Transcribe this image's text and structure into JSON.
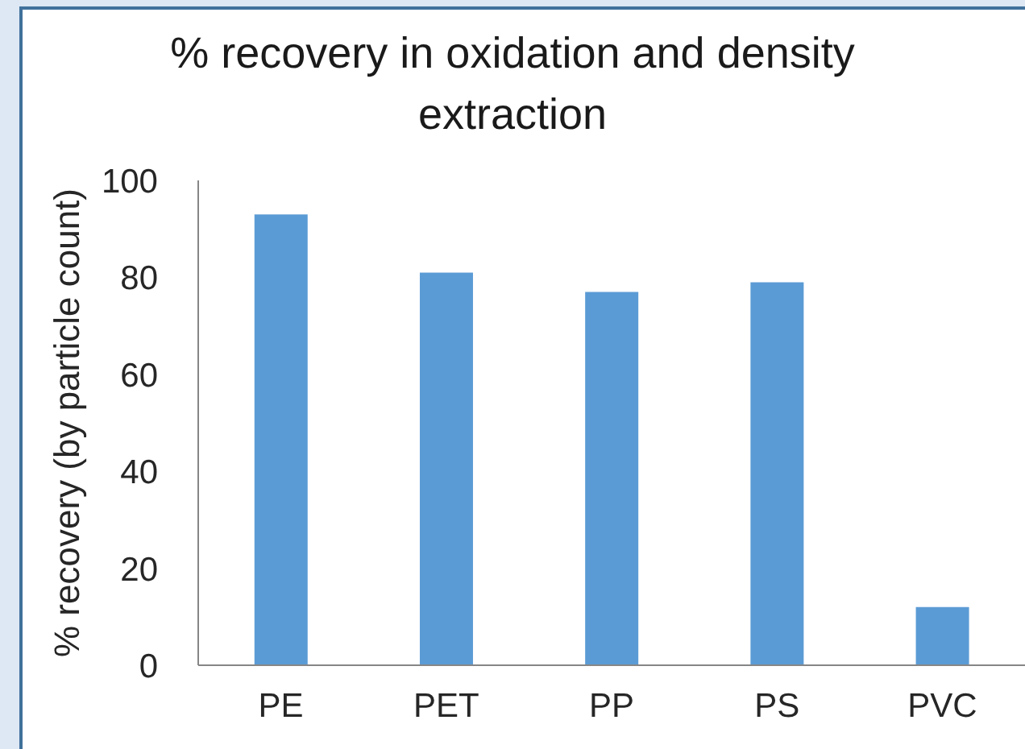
{
  "chart_data": {
    "type": "bar",
    "title": "% recovery in oxidation and density extraction",
    "ylabel": "% recovery (by particle count)",
    "categories": [
      "PE",
      "PET",
      "PP",
      "PS",
      "PVC"
    ],
    "values": [
      93,
      81,
      77,
      79,
      12
    ],
    "color": "#5b9bd5",
    "ylim": [
      0,
      100
    ],
    "yticks": [
      0,
      20,
      40,
      60,
      80,
      100
    ]
  }
}
